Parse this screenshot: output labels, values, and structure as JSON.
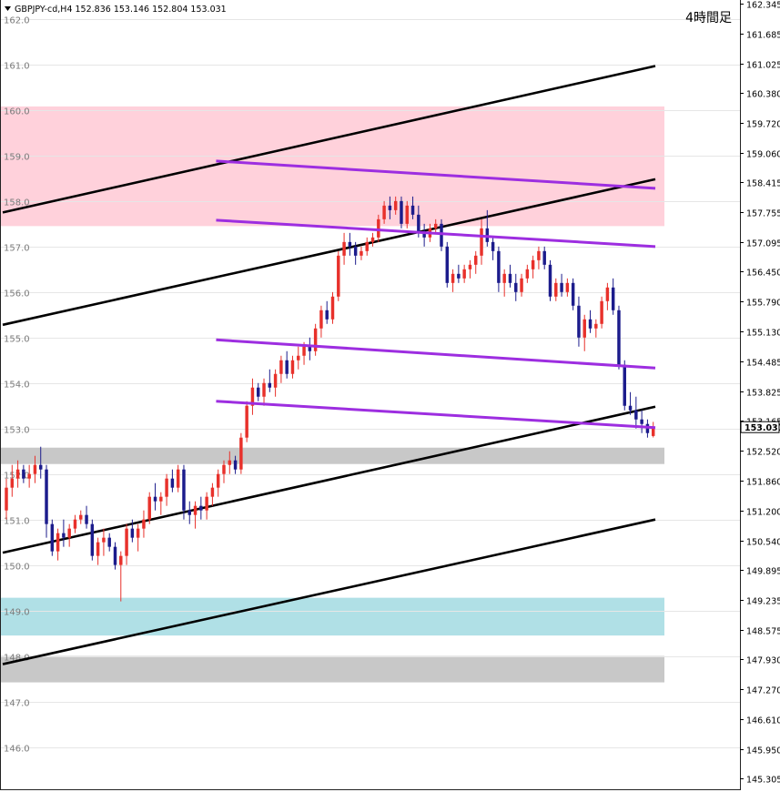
{
  "header": {
    "symbol_info": "GBPJPY-cd,H4  152.836 153.146 152.804 153.031",
    "timeframe_label": "4時間足"
  },
  "colors": {
    "background": "#ffffff",
    "bull_candle": "#e8312b",
    "bear_candle": "#1c1c8c",
    "resistance_zone": "#ffd1db",
    "support_zone": "#b0e0e6",
    "gray_zone": "#c8c8c8",
    "channel_line": "#000000",
    "trend_line": "#9d2ee0",
    "grid_label": "#7a7a7a",
    "current_price_bg": "#ffffff"
  },
  "icons": {
    "symbol_marker": "triangle-down-icon"
  },
  "chart_data": {
    "type": "candlestick",
    "symbol": "GBPJPY-cd",
    "timeframe": "H4",
    "ohlc": {
      "open": 152.836,
      "high": 153.146,
      "low": 152.804,
      "close": 153.031
    },
    "y_range": [
      145.05,
      162.42
    ],
    "right_axis_ticks": [
      162.345,
      161.685,
      161.025,
      160.38,
      159.72,
      159.06,
      158.415,
      157.755,
      157.095,
      156.45,
      155.79,
      155.13,
      154.485,
      153.825,
      153.165,
      152.52,
      151.86,
      151.2,
      150.54,
      149.895,
      149.235,
      148.575,
      147.93,
      147.27,
      146.61,
      145.95,
      145.305
    ],
    "right_axis_labels": [
      "162.345",
      "161.685",
      "161.025",
      "160.380",
      "159.720",
      "159.060",
      "158.415",
      "157.755",
      "157.095",
      "156.450",
      "155.790",
      "155.130",
      "154.485",
      "153.825",
      "153.165",
      "152.520",
      "151.860",
      "151.200",
      "150.540",
      "149.895",
      "149.235",
      "148.575",
      "147.930",
      "147.270",
      "146.610",
      "145.950",
      "145.305"
    ],
    "grid_levels": [
      162.0,
      161.0,
      160.0,
      159.0,
      158.0,
      157.0,
      156.0,
      155.0,
      154.0,
      153.0,
      152.0,
      151.0,
      150.0,
      149.0,
      148.0,
      147.0,
      146.0
    ],
    "grid_labels": [
      "162.0",
      "161.0",
      "160.0",
      "159.0",
      "158.0",
      "157.0",
      "156.0",
      "155.0",
      "154.0",
      "153.0",
      "152.0",
      "151.0",
      "150.0",
      "149.0",
      "148.0",
      "147.0",
      "146.0"
    ],
    "current_price": 153.031,
    "current_price_label": "153.031",
    "zones": [
      {
        "kind": "resistance",
        "from": 157.45,
        "to": 160.08,
        "color": "#ffd1db"
      },
      {
        "kind": "gray",
        "from": 152.22,
        "to": 152.58,
        "color": "#c8c8c8"
      },
      {
        "kind": "support",
        "from": 148.45,
        "to": 149.28,
        "color": "#b0e0e6"
      },
      {
        "kind": "gray",
        "from": 147.42,
        "to": 148.0,
        "color": "#c8c8c8"
      }
    ],
    "channel_lines": [
      {
        "x1": 0,
        "y1": 157.75,
        "x2": 1,
        "y2": 160.97
      },
      {
        "x1": 0,
        "y1": 155.28,
        "x2": 1,
        "y2": 158.48
      },
      {
        "x1": 0,
        "y1": 150.27,
        "x2": 1,
        "y2": 153.48
      },
      {
        "x1": 0,
        "y1": 147.82,
        "x2": 1,
        "y2": 151.0
      }
    ],
    "trend_lines": [
      {
        "x1": 0.327,
        "y1": 158.88,
        "x2": 1,
        "y2": 158.28
      },
      {
        "x1": 0.327,
        "y1": 157.58,
        "x2": 1,
        "y2": 157.0
      },
      {
        "x1": 0.327,
        "y1": 154.95,
        "x2": 1,
        "y2": 154.33
      },
      {
        "x1": 0.327,
        "y1": 153.6,
        "x2": 1,
        "y2": 153.02
      }
    ],
    "candles": [
      [
        151.2,
        151.9,
        151.0,
        151.7
      ],
      [
        151.7,
        152.2,
        151.5,
        151.9
      ],
      [
        151.9,
        152.3,
        151.7,
        152.1
      ],
      [
        152.1,
        152.2,
        151.8,
        151.9
      ],
      [
        151.9,
        152.2,
        151.7,
        152.0
      ],
      [
        152.0,
        152.4,
        151.8,
        152.2
      ],
      [
        152.2,
        152.6,
        151.9,
        152.1
      ],
      [
        152.1,
        152.2,
        150.6,
        150.9
      ],
      [
        150.9,
        151.0,
        150.2,
        150.3
      ],
      [
        150.3,
        150.8,
        150.1,
        150.7
      ],
      [
        150.7,
        151.0,
        150.4,
        150.6
      ],
      [
        150.6,
        150.9,
        150.4,
        150.8
      ],
      [
        150.8,
        151.1,
        150.7,
        151.0
      ],
      [
        151.0,
        151.2,
        150.9,
        151.1
      ],
      [
        151.1,
        151.3,
        150.8,
        150.9
      ],
      [
        150.9,
        151.0,
        150.1,
        150.2
      ],
      [
        150.2,
        150.6,
        150.0,
        150.5
      ],
      [
        150.5,
        150.8,
        150.2,
        150.6
      ],
      [
        150.6,
        150.7,
        150.3,
        150.4
      ],
      [
        150.4,
        150.5,
        149.9,
        150.0
      ],
      [
        150.0,
        150.3,
        149.2,
        150.2
      ],
      [
        150.2,
        150.9,
        150.0,
        150.8
      ],
      [
        150.8,
        151.0,
        150.5,
        150.6
      ],
      [
        150.6,
        150.9,
        150.3,
        150.8
      ],
      [
        150.8,
        151.2,
        150.6,
        151.0
      ],
      [
        151.0,
        151.6,
        150.9,
        151.5
      ],
      [
        151.5,
        151.8,
        151.2,
        151.4
      ],
      [
        151.4,
        151.6,
        151.1,
        151.5
      ],
      [
        151.5,
        152.0,
        151.3,
        151.9
      ],
      [
        151.9,
        152.1,
        151.6,
        151.7
      ],
      [
        151.7,
        152.2,
        151.6,
        152.1
      ],
      [
        152.1,
        152.2,
        151.0,
        151.2
      ],
      [
        151.2,
        151.4,
        150.9,
        151.1
      ],
      [
        151.1,
        151.4,
        150.8,
        151.3
      ],
      [
        151.3,
        151.5,
        151.0,
        151.2
      ],
      [
        151.2,
        151.6,
        151.0,
        151.5
      ],
      [
        151.5,
        151.8,
        151.3,
        151.7
      ],
      [
        151.7,
        152.1,
        151.5,
        152.0
      ],
      [
        152.0,
        152.3,
        151.8,
        152.2
      ],
      [
        152.2,
        152.5,
        152.0,
        152.3
      ],
      [
        152.3,
        152.4,
        152.0,
        152.1
      ],
      [
        152.1,
        152.9,
        152.0,
        152.8
      ],
      [
        152.8,
        153.6,
        152.7,
        153.5
      ],
      [
        153.5,
        154.1,
        153.3,
        153.9
      ],
      [
        153.9,
        154.0,
        153.6,
        153.7
      ],
      [
        153.7,
        154.1,
        153.5,
        154.0
      ],
      [
        154.0,
        154.3,
        153.8,
        153.9
      ],
      [
        153.9,
        154.3,
        153.7,
        154.2
      ],
      [
        154.2,
        154.6,
        154.0,
        154.5
      ],
      [
        154.5,
        154.7,
        154.1,
        154.2
      ],
      [
        154.2,
        154.6,
        154.1,
        154.5
      ],
      [
        154.5,
        154.8,
        154.3,
        154.6
      ],
      [
        154.6,
        154.9,
        154.4,
        154.8
      ],
      [
        154.8,
        155.0,
        154.5,
        154.7
      ],
      [
        154.7,
        155.3,
        154.6,
        155.2
      ],
      [
        155.2,
        155.7,
        155.0,
        155.6
      ],
      [
        155.6,
        155.8,
        155.3,
        155.4
      ],
      [
        155.4,
        156.0,
        155.3,
        155.9
      ],
      [
        155.9,
        156.9,
        155.8,
        156.8
      ],
      [
        156.8,
        157.3,
        156.6,
        157.1
      ],
      [
        157.1,
        157.3,
        156.8,
        157.0
      ],
      [
        157.0,
        157.1,
        156.6,
        156.8
      ],
      [
        156.8,
        157.0,
        156.7,
        156.9
      ],
      [
        156.9,
        157.2,
        156.8,
        157.1
      ],
      [
        157.1,
        157.3,
        157.0,
        157.2
      ],
      [
        157.2,
        157.7,
        157.1,
        157.6
      ],
      [
        157.6,
        158.0,
        157.5,
        157.9
      ],
      [
        157.9,
        158.1,
        157.6,
        157.8
      ],
      [
        157.8,
        158.1,
        157.7,
        158.0
      ],
      [
        158.0,
        158.1,
        157.4,
        157.5
      ],
      [
        157.5,
        158.0,
        157.4,
        157.9
      ],
      [
        157.9,
        158.1,
        157.6,
        157.7
      ],
      [
        157.7,
        157.9,
        157.2,
        157.3
      ],
      [
        157.3,
        157.5,
        157.0,
        157.2
      ],
      [
        157.2,
        157.5,
        157.1,
        157.4
      ],
      [
        157.4,
        157.6,
        157.3,
        157.5
      ],
      [
        157.5,
        157.6,
        156.9,
        157.0
      ],
      [
        157.0,
        157.1,
        156.1,
        156.2
      ],
      [
        156.2,
        156.5,
        156.0,
        156.4
      ],
      [
        156.4,
        156.6,
        156.2,
        156.3
      ],
      [
        156.3,
        156.6,
        156.2,
        156.5
      ],
      [
        156.5,
        156.7,
        156.3,
        156.6
      ],
      [
        156.6,
        156.9,
        156.4,
        156.8
      ],
      [
        156.8,
        157.6,
        156.6,
        157.4
      ],
      [
        157.4,
        157.8,
        157.0,
        157.1
      ],
      [
        157.1,
        157.2,
        156.7,
        156.9
      ],
      [
        156.9,
        157.0,
        156.0,
        156.2
      ],
      [
        156.2,
        156.5,
        155.9,
        156.4
      ],
      [
        156.4,
        156.6,
        156.1,
        156.2
      ],
      [
        156.2,
        156.4,
        155.8,
        156.0
      ],
      [
        156.0,
        156.4,
        155.9,
        156.3
      ],
      [
        156.3,
        156.6,
        156.2,
        156.5
      ],
      [
        156.5,
        156.8,
        156.3,
        156.7
      ],
      [
        156.7,
        157.0,
        156.5,
        156.9
      ],
      [
        156.9,
        157.0,
        156.5,
        156.6
      ],
      [
        156.6,
        156.7,
        155.8,
        155.9
      ],
      [
        155.9,
        156.3,
        155.8,
        156.2
      ],
      [
        156.2,
        156.4,
        155.9,
        156.0
      ],
      [
        156.0,
        156.3,
        155.9,
        156.2
      ],
      [
        156.2,
        156.3,
        155.6,
        155.7
      ],
      [
        155.7,
        155.9,
        154.8,
        155.0
      ],
      [
        155.0,
        155.5,
        154.7,
        155.4
      ],
      [
        155.4,
        155.6,
        155.1,
        155.2
      ],
      [
        155.2,
        155.4,
        155.0,
        155.3
      ],
      [
        155.3,
        155.9,
        155.2,
        155.8
      ],
      [
        155.8,
        156.2,
        155.6,
        156.1
      ],
      [
        156.1,
        156.3,
        155.5,
        155.6
      ],
      [
        155.6,
        155.7,
        154.3,
        154.4
      ],
      [
        154.4,
        154.5,
        153.4,
        153.5
      ],
      [
        153.5,
        153.8,
        153.3,
        153.4
      ],
      [
        153.4,
        153.7,
        153.0,
        153.2
      ],
      [
        153.2,
        153.4,
        152.9,
        153.1
      ],
      [
        153.1,
        153.2,
        152.8,
        152.9
      ],
      [
        152.836,
        153.146,
        152.804,
        153.031
      ]
    ]
  }
}
